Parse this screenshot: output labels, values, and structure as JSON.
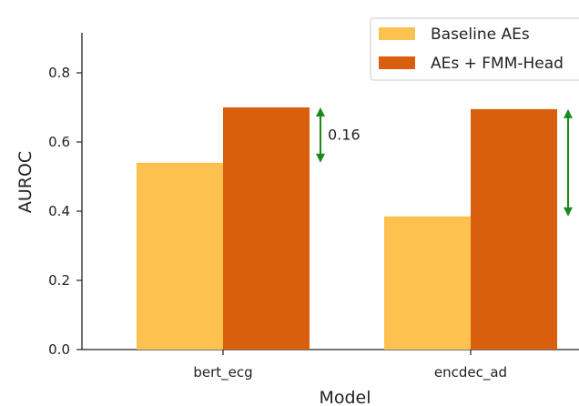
{
  "chart_data": {
    "type": "bar",
    "xlabel": "Model",
    "ylabel": "AUROC",
    "ylim": [
      0,
      0.92
    ],
    "yticks": [
      "0.0",
      "0.2",
      "0.4",
      "0.6",
      "0.8"
    ],
    "categories": [
      "bert_ecg",
      "encdec_ad"
    ],
    "series": [
      {
        "name": "Baseline AEs",
        "color": "#FDC150",
        "values": [
          0.54,
          0.385
        ]
      },
      {
        "name": "AEs + FMM-Head",
        "color": "#D95F0E",
        "values": [
          0.7,
          0.695
        ]
      }
    ],
    "annotations": [
      {
        "category": "bert_ecg",
        "label": "0.16",
        "from": 0.54,
        "to": 0.7,
        "color": "#1A8A1A"
      },
      {
        "category": "encdec_ad",
        "label": "",
        "from": 0.385,
        "to": 0.695,
        "color": "#1A8A1A"
      }
    ],
    "legend": {
      "placement": "top-right"
    },
    "grid": false
  }
}
